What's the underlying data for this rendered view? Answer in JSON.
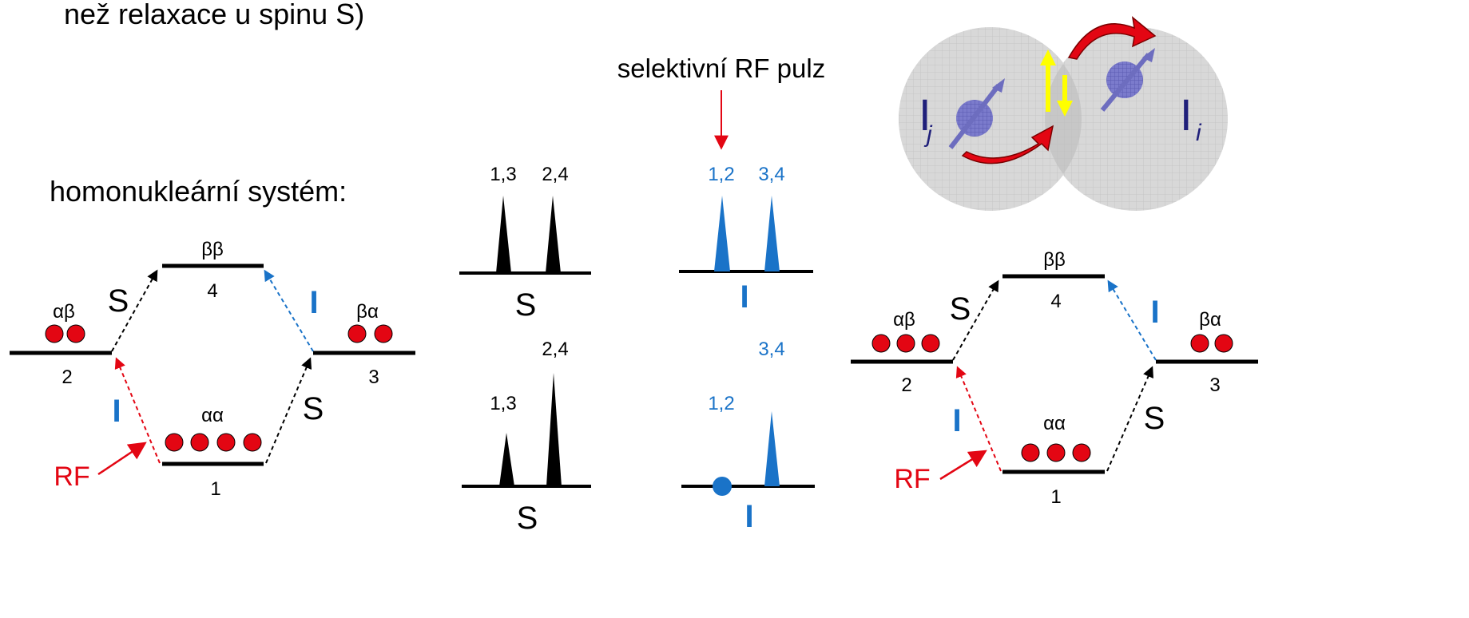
{
  "top_text": "než relaxace u spinu S)",
  "subtitle": "homonukleární systém:",
  "pulse_label": "selektivní RF pulz",
  "left_diagram": {
    "level_top": {
      "spin": "ββ",
      "num": "4"
    },
    "level_left": {
      "spin": "αβ",
      "num": "2"
    },
    "level_right": {
      "spin": "βα",
      "num": "3"
    },
    "level_bottom": {
      "spin": "αα",
      "num": "1"
    },
    "trans_S": "S",
    "trans_I": "I",
    "rf": "RF",
    "dots_left": 2,
    "dots_right": 2,
    "dots_bottom": 4
  },
  "right_diagram": {
    "level_top": {
      "spin": "ββ",
      "num": "4"
    },
    "level_left": {
      "spin": "αβ",
      "num": "2"
    },
    "level_right": {
      "spin": "βα",
      "num": "3"
    },
    "level_bottom": {
      "spin": "αα",
      "num": "1"
    },
    "trans_S": "S",
    "trans_I": "I",
    "rf": "RF",
    "dots_left": 3,
    "dots_right": 2,
    "dots_bottom": 3
  },
  "spectra": {
    "S_top": {
      "label": "S",
      "peak1": "1,3",
      "peak2": "2,4"
    },
    "I_top": {
      "label": "I",
      "peak1": "1,2",
      "peak2": "3,4"
    },
    "S_bottom": {
      "label": "S",
      "peak1": "1,3",
      "peak2": "2,4"
    },
    "I_bottom": {
      "label": "I",
      "peak1": "1,2",
      "peak2": "3,4"
    }
  },
  "noe_image": {
    "label_left": "I",
    "sub_left": "j",
    "label_right": "I",
    "sub_right": "i"
  },
  "colors": {
    "red": "#e30613",
    "blue": "#1a73c8",
    "yellow": "#ffff00",
    "sphere": "#d4d4d4",
    "spin": "#7f7fd0"
  }
}
